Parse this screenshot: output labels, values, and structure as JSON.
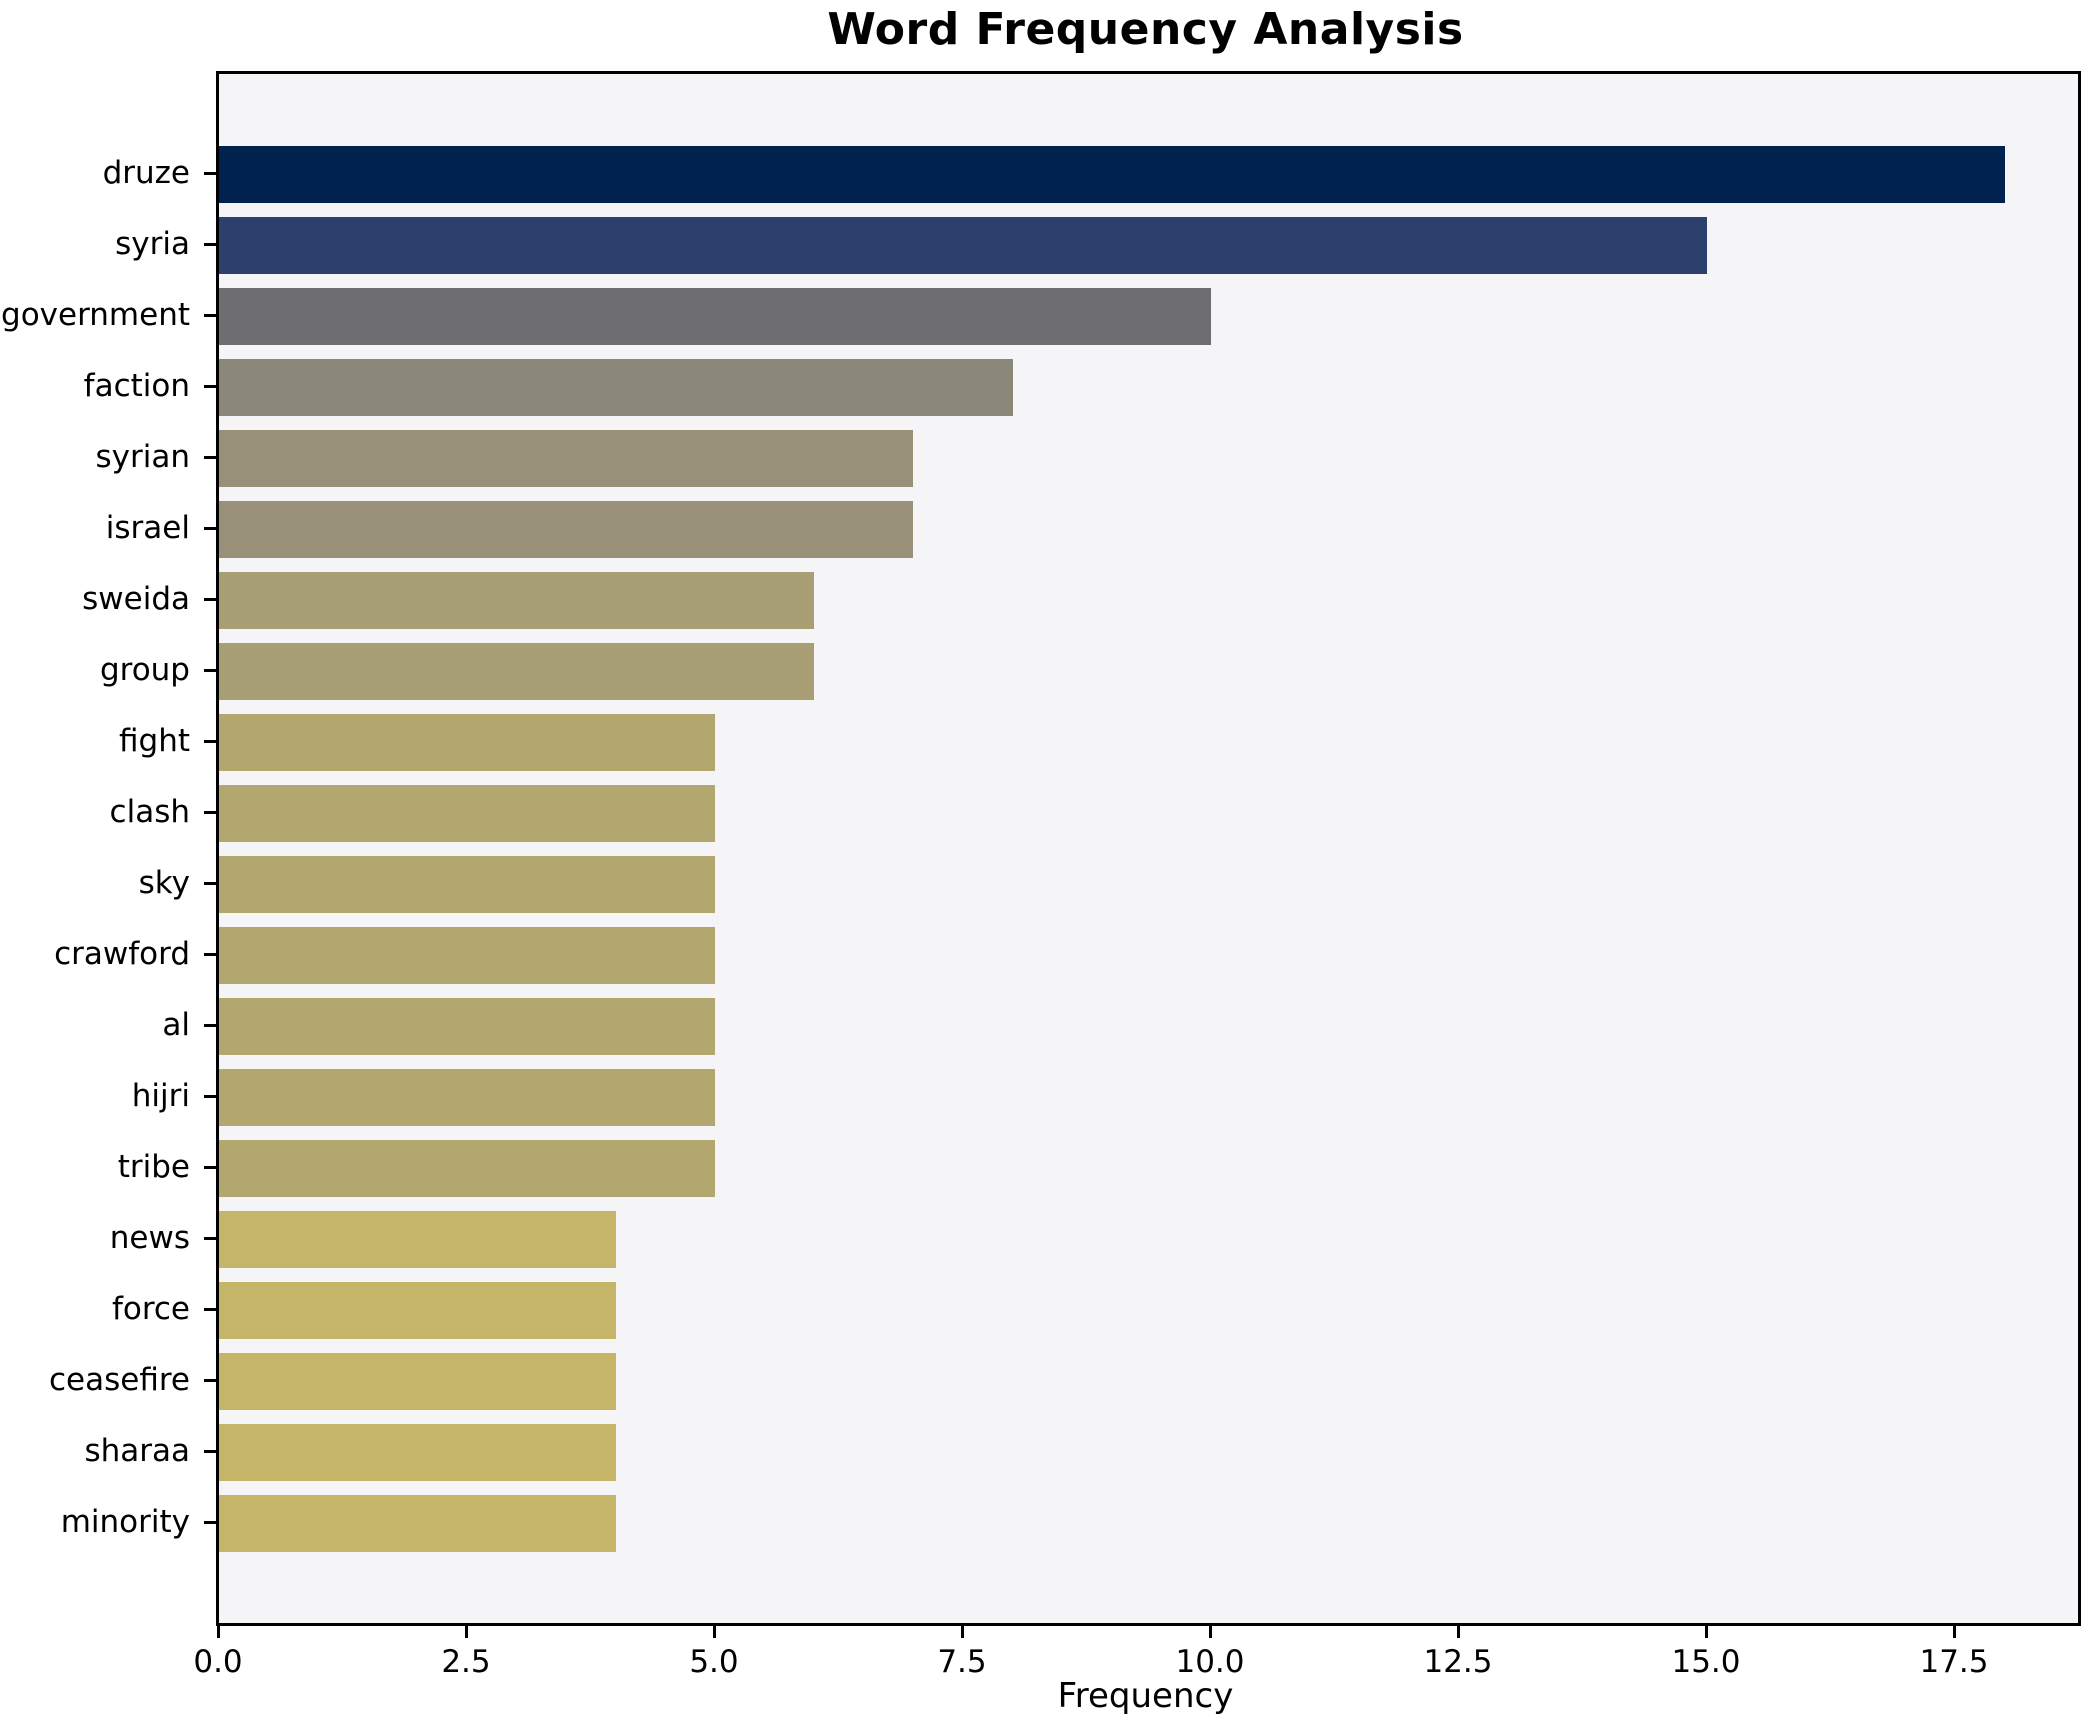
{
  "chart_data": {
    "type": "bar",
    "orientation": "horizontal",
    "title": "Word Frequency Analysis",
    "xlabel": "Frequency",
    "ylabel": "",
    "categories": [
      "druze",
      "syria",
      "government",
      "faction",
      "syrian",
      "israel",
      "sweida",
      "group",
      "fight",
      "clash",
      "sky",
      "crawford",
      "al",
      "hijri",
      "tribe",
      "news",
      "force",
      "ceasefire",
      "sharaa",
      "minority"
    ],
    "values": [
      18,
      15,
      10,
      8,
      7,
      7,
      6,
      6,
      5,
      5,
      5,
      5,
      5,
      5,
      5,
      4,
      4,
      4,
      4,
      4
    ],
    "bar_colors": [
      "#00224e",
      "#2d3f6b",
      "#6e6e72",
      "#8b8879",
      "#989078",
      "#989078",
      "#a79e74",
      "#a79e74",
      "#b2a76f",
      "#b2a76f",
      "#b2a76f",
      "#b2a76f",
      "#b2a76f",
      "#b2a76f",
      "#b2a76f",
      "#c5b569",
      "#c5b569",
      "#c5b569",
      "#c5b569",
      "#c5b569"
    ],
    "xlim": [
      0,
      18.74
    ],
    "xticks": [
      0.0,
      2.5,
      5.0,
      7.5,
      10.0,
      12.5,
      15.0,
      17.5
    ],
    "xtick_labels": [
      "0.0",
      "2.5",
      "5.0",
      "7.5",
      "10.0",
      "12.5",
      "15.0",
      "17.5"
    ],
    "grid": false,
    "legend": null,
    "colors": {
      "plot_background": "#f5f4f6",
      "figure_background": "#ffffff",
      "spine": "#000000",
      "text": "#000000"
    }
  }
}
